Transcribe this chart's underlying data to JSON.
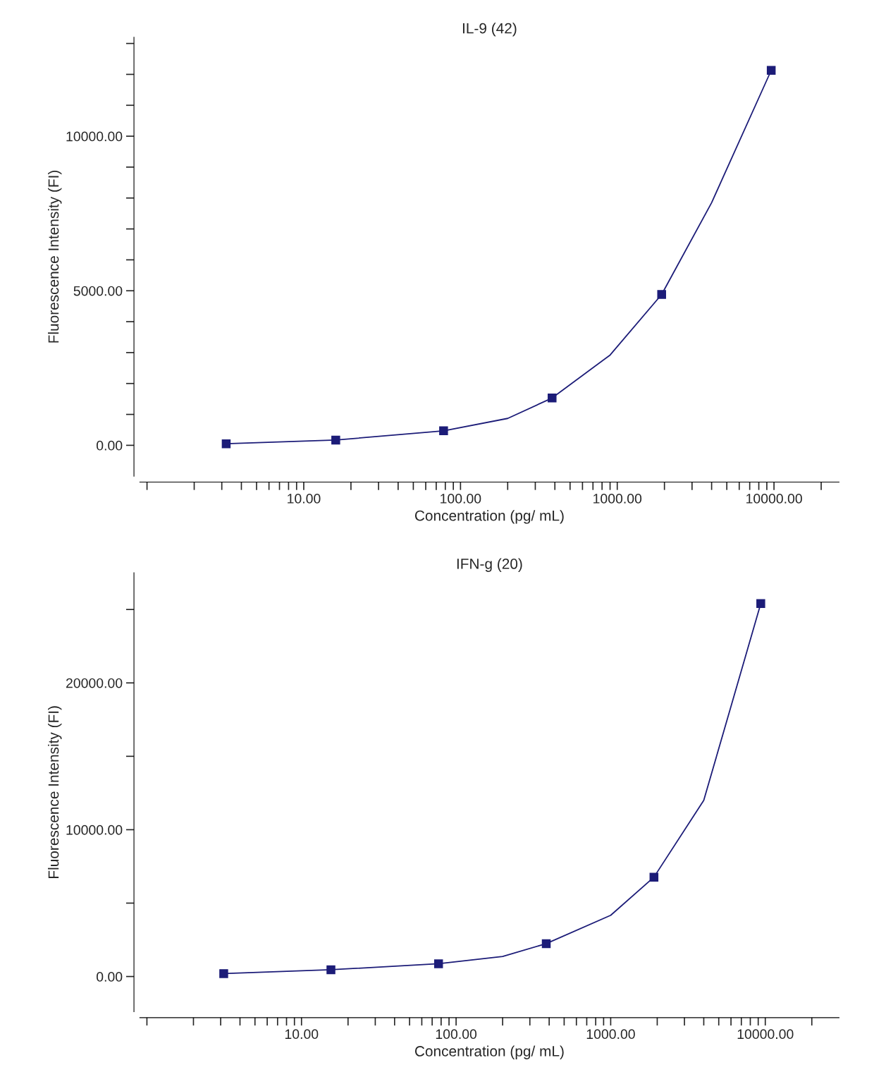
{
  "chart_data": [
    {
      "type": "line",
      "title": "IL-9 (42)",
      "xlabel": "Concentration (pg/ mL)",
      "ylabel": "Fluorescence Intensity (FI)",
      "log": "x",
      "grid": false,
      "legend": false,
      "marker": "square",
      "line_style": "solid",
      "xlim": [
        0.9,
        26000
      ],
      "ylim": [
        -1000,
        13200
      ],
      "xticks": [
        {
          "value": 1,
          "label": null
        },
        {
          "value": 2,
          "label": null
        },
        {
          "value": 3,
          "label": null
        },
        {
          "value": 4,
          "label": null
        },
        {
          "value": 5,
          "label": null
        },
        {
          "value": 6,
          "label": null
        },
        {
          "value": 7,
          "label": null
        },
        {
          "value": 8,
          "label": null
        },
        {
          "value": 9,
          "label": null
        },
        {
          "value": 10,
          "label": "10.00"
        },
        {
          "value": 20,
          "label": null
        },
        {
          "value": 30,
          "label": null
        },
        {
          "value": 40,
          "label": null
        },
        {
          "value": 50,
          "label": null
        },
        {
          "value": 60,
          "label": null
        },
        {
          "value": 70,
          "label": null
        },
        {
          "value": 80,
          "label": null
        },
        {
          "value": 90,
          "label": null
        },
        {
          "value": 100,
          "label": "100.00"
        },
        {
          "value": 200,
          "label": null
        },
        {
          "value": 300,
          "label": null
        },
        {
          "value": 400,
          "label": null
        },
        {
          "value": 500,
          "label": null
        },
        {
          "value": 600,
          "label": null
        },
        {
          "value": 700,
          "label": null
        },
        {
          "value": 800,
          "label": null
        },
        {
          "value": 900,
          "label": null
        },
        {
          "value": 1000,
          "label": "1000.00"
        },
        {
          "value": 2000,
          "label": null
        },
        {
          "value": 3000,
          "label": null
        },
        {
          "value": 4000,
          "label": null
        },
        {
          "value": 5000,
          "label": null
        },
        {
          "value": 6000,
          "label": null
        },
        {
          "value": 7000,
          "label": null
        },
        {
          "value": 8000,
          "label": null
        },
        {
          "value": 9000,
          "label": null
        },
        {
          "value": 10000,
          "label": "10000.00"
        },
        {
          "value": 20000,
          "label": null
        }
      ],
      "yticks": [
        {
          "value": 0,
          "label": "0.00"
        },
        {
          "value": 1000,
          "label": null
        },
        {
          "value": 2000,
          "label": null
        },
        {
          "value": 3000,
          "label": null
        },
        {
          "value": 4000,
          "label": null
        },
        {
          "value": 5000,
          "label": "5000.00"
        },
        {
          "value": 6000,
          "label": null
        },
        {
          "value": 7000,
          "label": null
        },
        {
          "value": 8000,
          "label": null
        },
        {
          "value": 9000,
          "label": null
        },
        {
          "value": 10000,
          "label": "10000.00"
        },
        {
          "value": 11000,
          "label": null
        },
        {
          "value": 12000,
          "label": null
        },
        {
          "value": 13000,
          "label": null
        }
      ],
      "series": [
        {
          "marker": "none",
          "color": "#1c1c78",
          "x": [
            3.2,
            16,
            78,
            200,
            384,
            900,
            1920,
            4000,
            9600
          ],
          "values": [
            50,
            170,
            470,
            870,
            1530,
            2920,
            4880,
            7850,
            12130
          ]
        },
        {
          "type": "scatter",
          "color": "#1c1c78",
          "x": [
            3.2,
            16,
            78,
            384,
            1920,
            9600
          ],
          "values": [
            50,
            170,
            470,
            1530,
            4880,
            12130
          ]
        }
      ]
    },
    {
      "type": "line",
      "title": "IFN-g (20)",
      "xlabel": "Concentration (pg/ mL)",
      "ylabel": "Fluorescence Intensity (FI)",
      "log": "x",
      "grid": false,
      "legend": false,
      "marker": "square",
      "line_style": "solid",
      "xlim": [
        0.9,
        30000
      ],
      "ylim": [
        -2400,
        27500
      ],
      "xticks": [
        {
          "value": 1,
          "label": null
        },
        {
          "value": 2,
          "label": null
        },
        {
          "value": 3,
          "label": null
        },
        {
          "value": 4,
          "label": null
        },
        {
          "value": 5,
          "label": null
        },
        {
          "value": 6,
          "label": null
        },
        {
          "value": 7,
          "label": null
        },
        {
          "value": 8,
          "label": null
        },
        {
          "value": 9,
          "label": null
        },
        {
          "value": 10,
          "label": "10.00"
        },
        {
          "value": 20,
          "label": null
        },
        {
          "value": 30,
          "label": null
        },
        {
          "value": 40,
          "label": null
        },
        {
          "value": 50,
          "label": null
        },
        {
          "value": 60,
          "label": null
        },
        {
          "value": 70,
          "label": null
        },
        {
          "value": 80,
          "label": null
        },
        {
          "value": 90,
          "label": null
        },
        {
          "value": 100,
          "label": "100.00"
        },
        {
          "value": 200,
          "label": null
        },
        {
          "value": 300,
          "label": null
        },
        {
          "value": 400,
          "label": null
        },
        {
          "value": 500,
          "label": null
        },
        {
          "value": 600,
          "label": null
        },
        {
          "value": 700,
          "label": null
        },
        {
          "value": 800,
          "label": null
        },
        {
          "value": 900,
          "label": null
        },
        {
          "value": 1000,
          "label": "1000.00"
        },
        {
          "value": 2000,
          "label": null
        },
        {
          "value": 3000,
          "label": null
        },
        {
          "value": 4000,
          "label": null
        },
        {
          "value": 5000,
          "label": null
        },
        {
          "value": 6000,
          "label": null
        },
        {
          "value": 7000,
          "label": null
        },
        {
          "value": 8000,
          "label": null
        },
        {
          "value": 9000,
          "label": null
        },
        {
          "value": 10000,
          "label": "10000.00"
        },
        {
          "value": 20000,
          "label": null
        }
      ],
      "yticks": [
        {
          "value": 0,
          "label": "0.00"
        },
        {
          "value": 5000,
          "label": null
        },
        {
          "value": 10000,
          "label": "10000.00"
        },
        {
          "value": 15000,
          "label": null
        },
        {
          "value": 20000,
          "label": "20000.00"
        },
        {
          "value": 25000,
          "label": null
        }
      ],
      "series": [
        {
          "marker": "none",
          "color": "#1c1c78",
          "x": [
            3.14,
            15.5,
            77,
            200,
            383,
            1000,
            1905,
            4000,
            9350
          ],
          "values": [
            200,
            460,
            870,
            1370,
            2240,
            4170,
            6770,
            12000,
            25400
          ]
        },
        {
          "type": "scatter",
          "color": "#1c1c78",
          "x": [
            3.14,
            15.5,
            77,
            383,
            1905,
            9350
          ],
          "values": [
            200,
            460,
            870,
            2240,
            6770,
            25400
          ]
        }
      ]
    }
  ]
}
